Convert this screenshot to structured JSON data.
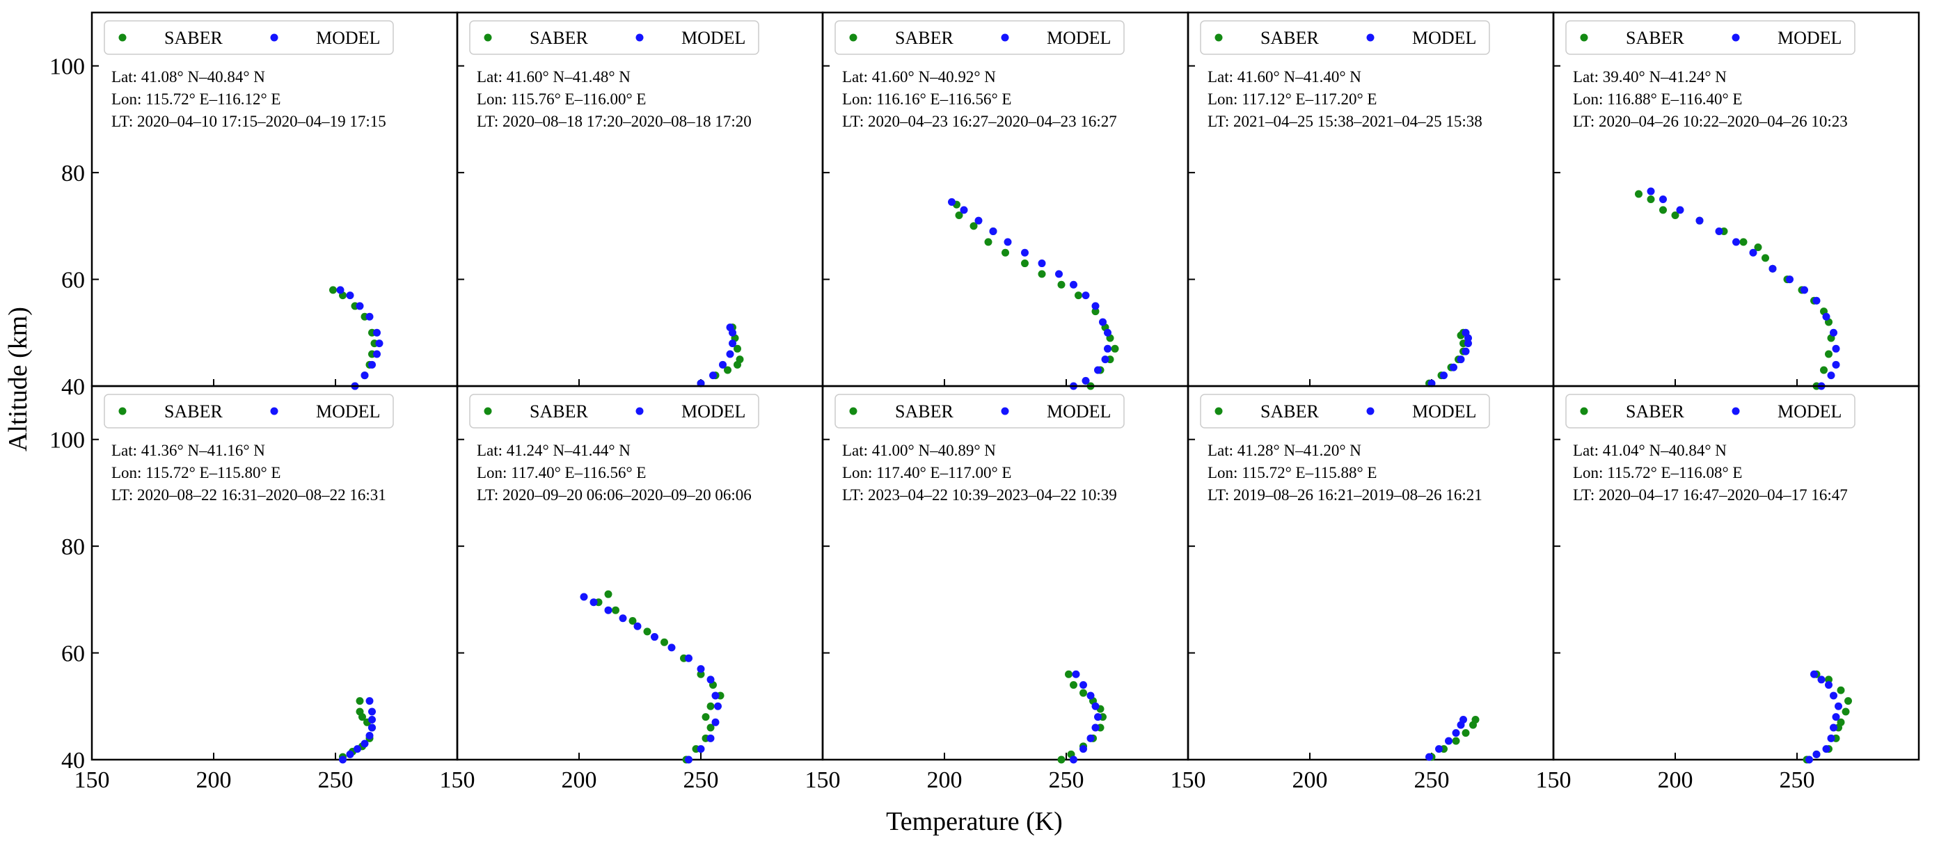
{
  "figure": {
    "xlabel": "Temperature (K)",
    "ylabel": "Altitude (km)",
    "colors": {
      "saber": "#138a13",
      "model": "#1414ff"
    }
  },
  "chart_data": [
    {
      "type": "scatter",
      "xlim": [
        150,
        300
      ],
      "ylim": [
        40,
        110
      ],
      "xticks": [
        "150",
        "200",
        "250"
      ],
      "yticks": [
        "40",
        "60",
        "80",
        "100"
      ],
      "legend": "top-left",
      "annotations": [
        "Lat: 41.08° N–40.84° N",
        "Lon: 115.72° E–116.12° E",
        "LT: 2020–04–10 17:15–2020–04–19 17:15"
      ],
      "series": [
        {
          "name": "SABER",
          "x": [
            249,
            253,
            258,
            262,
            265,
            266,
            265,
            264,
            262,
            258
          ],
          "y": [
            58,
            57,
            55,
            53,
            50,
            48,
            46,
            44,
            42,
            40
          ]
        },
        {
          "name": "MODEL",
          "x": [
            252,
            256,
            260,
            264,
            267,
            268,
            267,
            265,
            262,
            258
          ],
          "y": [
            58,
            57,
            55,
            53,
            50,
            48,
            46,
            44,
            42,
            40
          ]
        }
      ]
    },
    {
      "type": "scatter",
      "xlim": [
        150,
        300
      ],
      "ylim": [
        40,
        110
      ],
      "xticks": [
        "150",
        "200",
        "250"
      ],
      "yticks": [],
      "legend": "top-left",
      "annotations": [
        "Lat: 41.60° N–41.48° N",
        "Lon: 115.76° E–116.00° E",
        "LT: 2020–08–18 17:20–2020–08–18 17:20"
      ],
      "series": [
        {
          "name": "SABER",
          "x": [
            250,
            256,
            261,
            265,
            266,
            265,
            264,
            263
          ],
          "y": [
            40.5,
            42,
            43,
            44,
            45,
            47,
            49,
            51
          ]
        },
        {
          "name": "MODEL",
          "x": [
            250,
            255,
            259,
            262,
            263,
            263,
            262
          ],
          "y": [
            40.5,
            42,
            44,
            46,
            48,
            50,
            51
          ]
        }
      ]
    },
    {
      "type": "scatter",
      "xlim": [
        150,
        300
      ],
      "ylim": [
        40,
        110
      ],
      "xticks": [
        "150",
        "200",
        "250"
      ],
      "yticks": [],
      "legend": "top-left",
      "annotations": [
        "Lat: 41.60° N–40.92° N",
        "Lon: 116.16° E–116.56° E",
        "LT: 2020–04–23 16:27–2020–04–23 16:27"
      ],
      "series": [
        {
          "name": "SABER",
          "x": [
            205,
            206,
            212,
            220,
            218,
            225,
            233,
            240,
            248,
            255,
            262,
            266,
            268,
            270,
            268,
            264,
            260
          ],
          "y": [
            74,
            72,
            70,
            69,
            67,
            65,
            63,
            61,
            59,
            57,
            54,
            51,
            49,
            47,
            45,
            43,
            40
          ]
        },
        {
          "name": "MODEL",
          "x": [
            203,
            208,
            214,
            220,
            226,
            233,
            240,
            247,
            253,
            258,
            262,
            265,
            267,
            267,
            266,
            263,
            258,
            253
          ],
          "y": [
            74.5,
            73,
            71,
            69,
            67,
            65,
            63,
            61,
            59,
            57,
            55,
            52,
            50,
            47,
            45,
            43,
            41,
            40
          ]
        }
      ]
    },
    {
      "type": "scatter",
      "xlim": [
        150,
        300
      ],
      "ylim": [
        40,
        110
      ],
      "xticks": [
        "150",
        "200",
        "250"
      ],
      "yticks": [],
      "legend": "top-left",
      "annotations": [
        "Lat: 41.60° N–41.40° N",
        "Lon: 117.12° E–117.20° E",
        "LT: 2021–04–25 15:38–2021–04–25 15:38"
      ],
      "series": [
        {
          "name": "SABER",
          "x": [
            249,
            254,
            258,
            261,
            263,
            263,
            262,
            263
          ],
          "y": [
            40.5,
            42,
            43.5,
            45,
            46.5,
            48,
            49.5,
            50
          ]
        },
        {
          "name": "MODEL",
          "x": [
            250,
            255,
            259,
            262,
            264,
            265,
            265,
            264
          ],
          "y": [
            40.5,
            42,
            43.5,
            45,
            46.5,
            48,
            49,
            50
          ]
        }
      ]
    },
    {
      "type": "scatter",
      "xlim": [
        150,
        300
      ],
      "ylim": [
        40,
        110
      ],
      "xticks": [
        "150",
        "200",
        "250"
      ],
      "yticks": [],
      "legend": "top-left",
      "annotations": [
        "Lat: 39.40° N–41.24° N",
        "Lon: 116.88° E–116.40° E",
        "LT: 2020–04–26 10:22–2020–04–26 10:23"
      ],
      "series": [
        {
          "name": "SABER",
          "x": [
            185,
            190,
            195,
            200,
            210,
            220,
            228,
            234,
            237,
            240,
            246,
            252,
            257,
            261,
            263,
            264,
            263,
            261,
            258
          ],
          "y": [
            76,
            75,
            73,
            72,
            71,
            69,
            67,
            66,
            64,
            62,
            60,
            58,
            56,
            54,
            52,
            49,
            46,
            43,
            40
          ]
        },
        {
          "name": "MODEL",
          "x": [
            190,
            195,
            202,
            210,
            218,
            225,
            232,
            240,
            247,
            253,
            258,
            262,
            265,
            266,
            266,
            264,
            260
          ],
          "y": [
            76.5,
            75,
            73,
            71,
            69,
            67,
            65,
            62,
            60,
            58,
            56,
            53,
            50,
            47,
            44,
            42,
            40
          ]
        }
      ]
    },
    {
      "type": "scatter",
      "xlim": [
        150,
        300
      ],
      "ylim": [
        40,
        110
      ],
      "xticks": [
        "150",
        "200",
        "250"
      ],
      "yticks": [
        "40",
        "60",
        "80",
        "100"
      ],
      "legend": "top-left",
      "annotations": [
        "Lat: 41.36° N–41.16° N",
        "Lon: 115.72° E–115.80° E",
        "LT: 2020–08–22 16:31–2020–08–22 16:31"
      ],
      "series": [
        {
          "name": "SABER",
          "x": [
            260,
            260,
            261,
            263,
            265,
            264,
            261,
            257,
            253
          ],
          "y": [
            51,
            49,
            48,
            47,
            46,
            44,
            42.5,
            41.5,
            40.5
          ]
        },
        {
          "name": "MODEL",
          "x": [
            264,
            265,
            265,
            265,
            264,
            262,
            259,
            256,
            253
          ],
          "y": [
            51,
            49,
            47.5,
            46,
            44.5,
            43,
            42,
            41,
            40
          ]
        }
      ]
    },
    {
      "type": "scatter",
      "xlim": [
        150,
        300
      ],
      "ylim": [
        40,
        110
      ],
      "xticks": [
        "150",
        "200",
        "250"
      ],
      "yticks": [],
      "legend": "top-left",
      "annotations": [
        "Lat: 41.24° N–41.44° N",
        "Lon: 117.40° E–116.56° E",
        "LT: 2020–09–20 06:06–2020–09–20 06:06"
      ],
      "series": [
        {
          "name": "SABER",
          "x": [
            212,
            208,
            215,
            222,
            228,
            235,
            243,
            250,
            255,
            258,
            254,
            252,
            254,
            252,
            248,
            244
          ],
          "y": [
            71,
            69.5,
            68,
            66,
            64,
            62,
            59,
            56,
            54,
            52,
            50,
            48,
            46,
            44,
            42,
            40
          ]
        },
        {
          "name": "MODEL",
          "x": [
            202,
            206,
            212,
            218,
            224,
            231,
            238,
            245,
            250,
            254,
            256,
            257,
            256,
            254,
            250,
            245
          ],
          "y": [
            70.5,
            69.5,
            68,
            66.5,
            65,
            63,
            61,
            59,
            57,
            55,
            52,
            50,
            47,
            44,
            42,
            40
          ]
        }
      ]
    },
    {
      "type": "scatter",
      "xlim": [
        150,
        300
      ],
      "ylim": [
        40,
        110
      ],
      "xticks": [
        "150",
        "200",
        "250"
      ],
      "yticks": [],
      "legend": "top-left",
      "annotations": [
        "Lat: 41.00° N–40.89° N",
        "Lon: 117.40° E–117.00° E",
        "LT: 2023–04–22 10:39–2023–04–22 10:39"
      ],
      "series": [
        {
          "name": "SABER",
          "x": [
            251,
            253,
            257,
            261,
            264,
            265,
            264,
            261,
            257,
            252,
            248
          ],
          "y": [
            56,
            54,
            52.5,
            51,
            49.5,
            48,
            46,
            44,
            42.5,
            41,
            40
          ]
        },
        {
          "name": "MODEL",
          "x": [
            254,
            257,
            260,
            262,
            263,
            262,
            260,
            257,
            253
          ],
          "y": [
            56,
            54,
            52,
            50,
            48,
            46,
            44,
            42,
            40
          ]
        }
      ]
    },
    {
      "type": "scatter",
      "xlim": [
        150,
        300
      ],
      "ylim": [
        40,
        110
      ],
      "xticks": [
        "150",
        "200",
        "250"
      ],
      "yticks": [],
      "legend": "top-left",
      "annotations": [
        "Lat: 41.28° N–41.20° N",
        "Lon: 115.72° E–115.88° E",
        "LT: 2019–08–26 16:21–2019–08–26 16:21"
      ],
      "series": [
        {
          "name": "SABER",
          "x": [
            250,
            255,
            260,
            264,
            267,
            268
          ],
          "y": [
            40.5,
            42,
            43.5,
            45,
            46.5,
            47.5
          ]
        },
        {
          "name": "MODEL",
          "x": [
            249,
            253,
            257,
            260,
            262,
            263
          ],
          "y": [
            40.5,
            42,
            43.5,
            45,
            46.5,
            47.5
          ]
        }
      ]
    },
    {
      "type": "scatter",
      "xlim": [
        150,
        300
      ],
      "ylim": [
        40,
        110
      ],
      "xticks": [
        "150",
        "200",
        "250"
      ],
      "yticks": [],
      "legend": "top-left",
      "annotations": [
        "Lat: 41.04° N–40.84° N",
        "Lon: 115.72° E–116.08° E",
        "LT: 2020–04–17 16:47–2020–04–17 16:47"
      ],
      "series": [
        {
          "name": "SABER",
          "x": [
            258,
            263,
            268,
            271,
            270,
            268,
            267,
            266,
            263,
            258,
            254
          ],
          "y": [
            56,
            55,
            53,
            51,
            49,
            47,
            46,
            44,
            42,
            41,
            40
          ]
        },
        {
          "name": "MODEL",
          "x": [
            257,
            260,
            263,
            265,
            267,
            266,
            265,
            264,
            262,
            258,
            255
          ],
          "y": [
            56,
            55,
            54,
            52,
            50,
            48,
            46,
            44,
            42,
            41,
            40
          ]
        }
      ]
    }
  ]
}
